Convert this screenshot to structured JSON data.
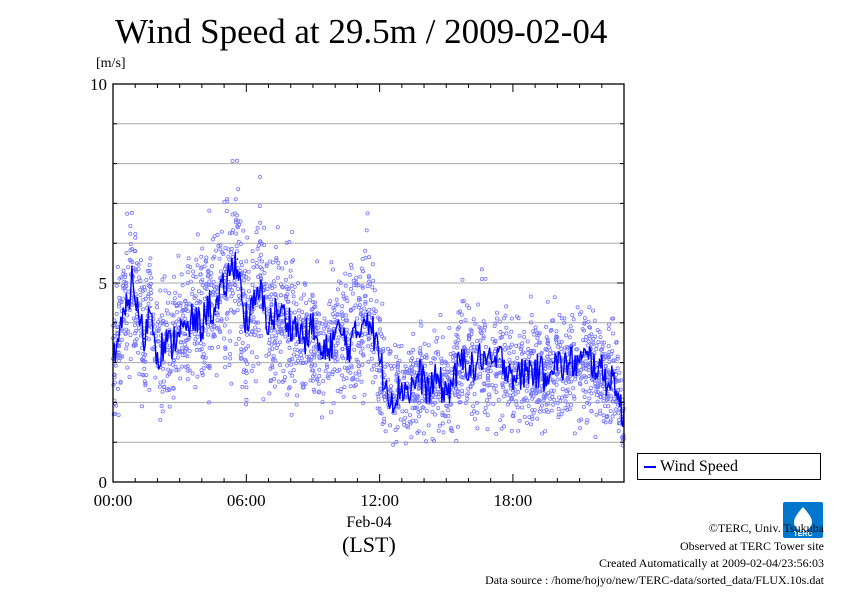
{
  "chart_data": {
    "type": "scatter",
    "title": "Wind Speed at 29.5m / 2009-02-04",
    "ylabel": "[m/s]",
    "xlabel_date": "Feb-04",
    "xlabel_unit": "(LST)",
    "ylim": [
      0,
      10
    ],
    "xlim_hours": [
      0,
      23
    ],
    "yticks": [
      "0",
      "5",
      "10"
    ],
    "xticks": [
      {
        "hour": 0,
        "label": "00:00"
      },
      {
        "hour": 6,
        "label": "06:00"
      },
      {
        "hour": 12,
        "label": "12:00"
      },
      {
        "hour": 18,
        "label": "18:00"
      }
    ],
    "grid": true,
    "legend_position": "right-bottom",
    "series": [
      {
        "name": "Wind Speed",
        "color": "#0000ff",
        "raw_color": "#7777ff",
        "mean_x_hours": [
          0.0,
          0.3,
          0.6,
          0.9,
          1.1,
          1.4,
          1.7,
          2.0,
          2.3,
          2.6,
          3.0,
          3.3,
          3.6,
          4.0,
          4.3,
          4.6,
          5.0,
          5.3,
          5.6,
          5.9,
          6.2,
          6.6,
          7.0,
          7.4,
          7.8,
          8.2,
          8.6,
          9.0,
          9.4,
          9.8,
          10.2,
          10.6,
          11.0,
          11.4,
          11.8,
          12.2,
          12.6,
          13.0,
          13.4,
          13.8,
          14.2,
          14.6,
          15.0,
          15.4,
          15.8,
          16.2,
          16.6,
          17.0,
          17.4,
          17.8,
          18.2,
          18.6,
          19.0,
          19.4,
          19.8,
          20.2,
          20.6,
          21.0,
          21.4,
          21.8,
          22.2,
          22.6,
          22.9
        ],
        "mean_y": [
          3.2,
          3.7,
          4.3,
          5.2,
          4.3,
          3.6,
          4.4,
          3.2,
          3.5,
          3.4,
          3.9,
          3.7,
          4.1,
          3.9,
          4.5,
          4.2,
          4.9,
          5.3,
          5.6,
          4.1,
          4.2,
          4.8,
          4.0,
          4.3,
          4.1,
          3.9,
          3.6,
          3.9,
          3.1,
          3.5,
          3.8,
          3.4,
          3.7,
          4.3,
          3.6,
          2.6,
          2.1,
          2.4,
          2.3,
          2.7,
          2.3,
          2.6,
          2.2,
          2.7,
          3.1,
          2.8,
          3.2,
          2.9,
          3.1,
          2.9,
          2.6,
          2.8,
          2.8,
          2.7,
          3.0,
          2.9,
          3.0,
          3.0,
          3.1,
          2.9,
          2.6,
          2.6,
          1.6
        ]
      }
    ]
  },
  "credits": {
    "copyright": "©TERC, Univ. Tsukuba",
    "observed": "Observed at TERC Tower site",
    "created": "Created Automatically at 2009-02-04/23:56:03",
    "source": "Data source : /home/hojyo/new/TERC-data/sorted_data/FLUX.10s.dat"
  },
  "logo": {
    "text": "TERC",
    "color": "#0077cc"
  }
}
